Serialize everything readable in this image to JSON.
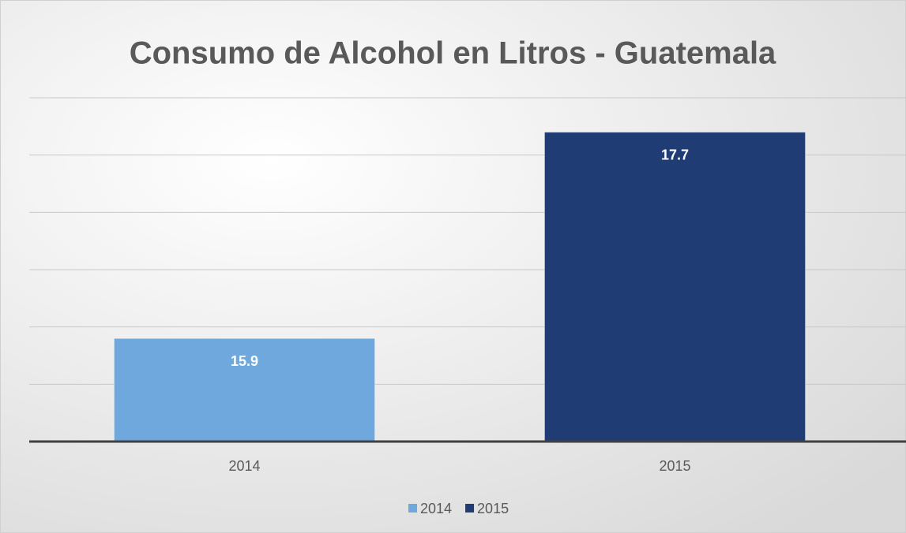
{
  "chart_data": {
    "type": "bar",
    "title": "Consumo de Alcohol en Litros - Guatemala",
    "categories": [
      "2014",
      "2015"
    ],
    "values": [
      15.9,
      17.7
    ],
    "colors": [
      "#6fa8dc",
      "#203c74"
    ],
    "ylim": [
      15,
      18
    ],
    "yticks": [
      15,
      15.5,
      16,
      16.5,
      17,
      17.5,
      18
    ],
    "grid": true,
    "legend": "bottom"
  }
}
